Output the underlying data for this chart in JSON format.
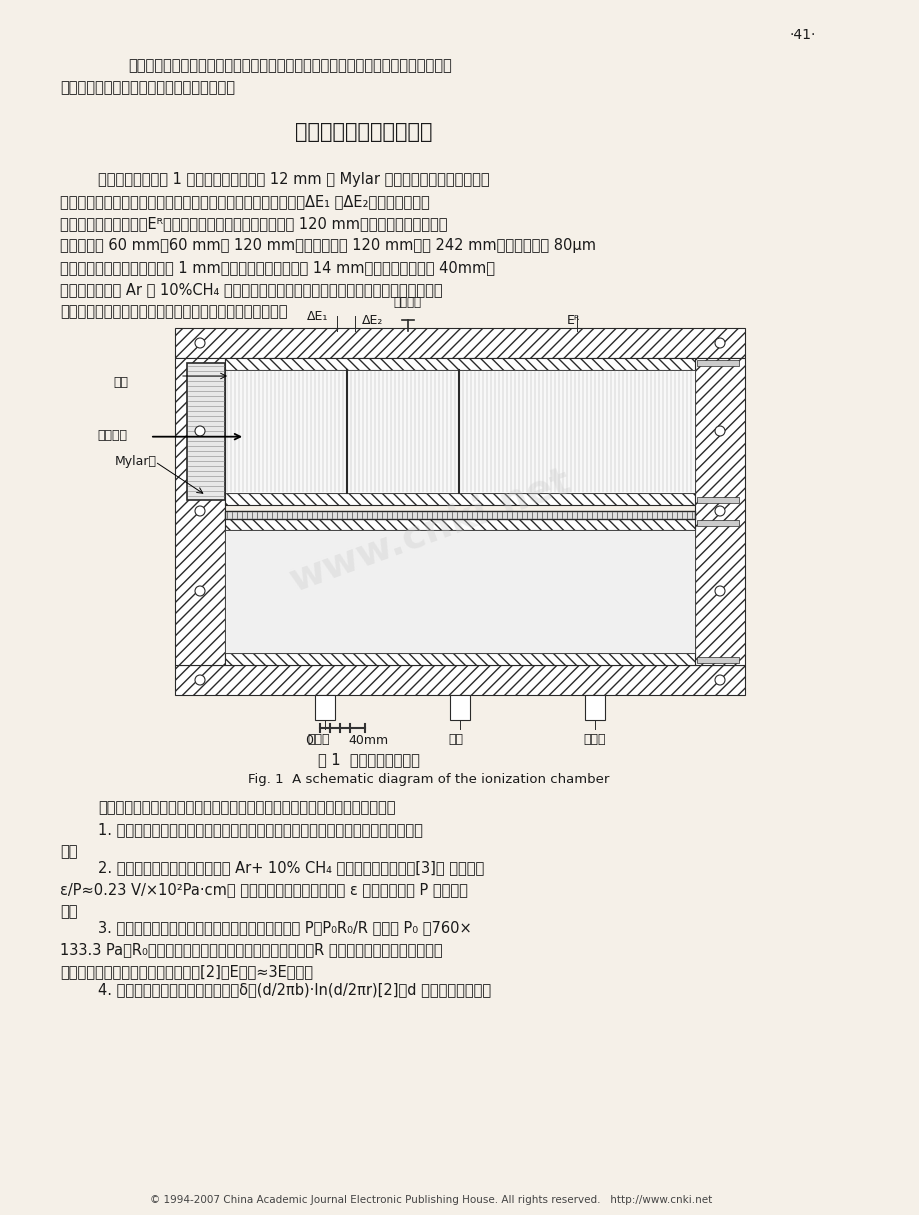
{
  "page_bg": "#f5f0e8",
  "text_color": "#1a1a1a",
  "page_number": "·41·",
  "para1": "同量异位素的能量相同时，二者的能量损失率大小直接同原子序数的平方成正比。通",
  "para1b": "过测定粒子的能量损失率可以确定原子序数。",
  "section_title": "三、电离室的结构及调试",
  "body1": "电离室的结构如图 1 所示。粒子通过直径 12 mm 的 Mylar 膜进入到气体电离室。气体",
  "body1b": "电离室是由三个分开的阳极、栅极和阴极组成。前面两个阳极（ΔE₁ 和ΔE₂）测量粒子的能",
  "body1c": "量损失，第三个阳极（Eᴿ）测量剩余能量。阳极板的宽度为 120 mm，其长度（粒子入射方",
  "body1d": "向）分别为 60 mm，60 mm和 120 mm。阴极板宽度 120 mm，长 242 mm。栅极用直径 80μm",
  "body1e": "的镀金鹨丝制作，丝的间距为 1 mm。栅极至阳极的距离为 14 mm，至阴极的距离为 40mm。",
  "body1f": "电离室的气体是 Ar 和 10%CH₄ 混合气体。为了保持气体的新鲜和压力的稳定，工作时采",
  "body1g": "用流气式，气压的稳定由气体进出口的两个针阀进行调节。",
  "fig1_title_cn": "图 1  电离室结构示意图",
  "fig1_title_en": "Fig. 1  A schematic diagram of the ionization chamber",
  "after_fig_para": "在制作和调试电离室时，为了获得良好的能量分辨率，我们考虑了下列因素：",
  "item1": "1. 电场均匀性要好。对于本电离室，阳极选为正电位可减少端效应所造成的电场畅",
  "item1b": "变。",
  "item2_v2": "2. 电离电子的漂移速度要快。在 Ar+ 10% CH₄ 混合气中，根据计算[3]， 约化场强",
  "item2b": "ε/P≈0.23 V/×10²Pa·cm时 电子的漂移速度较快，其中 ε 为电场强度， P 为气体压",
  "item2c": "力。",
  "item3": "3. 工作气体压强和极间场强的选择。压力由关系式 P＝P₀R₀/R 给出， P₀ 为760×",
  "item3b": "133.3 Pa，R₀为离子在一个大气压的工作气体中的射程，R 为灵敏区长度。栅极至阳极，",
  "item3c": "以及栅极至阴极间的电压有匹配关系[2]，E栅阳≈3E栅阴。",
  "item4": "4. 栅极的屏蔽失效要小。损失效率δ＝(d/2πb)·ln(d/2πr)[2]，d 为栅极丝间距离，",
  "footer": "© 1994-2007 China Academic Journal Electronic Publishing House. All rights reserved.   http://www.cnki.net"
}
